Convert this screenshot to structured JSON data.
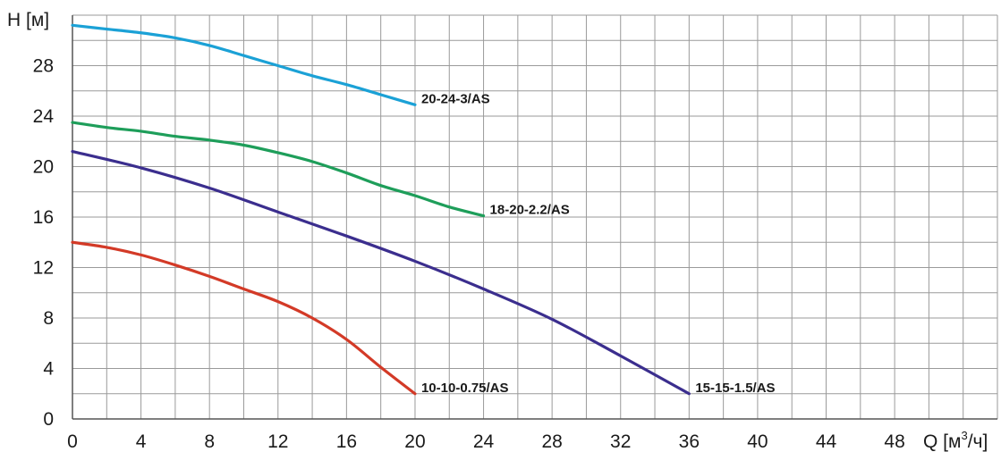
{
  "chart_data": {
    "type": "line",
    "title": "",
    "xlabel": "Q [м",
    "xlabel_sup": "3",
    "xlabel_tail": "/ч]",
    "ylabel": "H [м]",
    "xlim": [
      0,
      54
    ],
    "ylim": [
      0,
      32
    ],
    "grid": true,
    "x_minor_step": 2,
    "y_minor_step": 2,
    "x_ticks": [
      0,
      4,
      8,
      12,
      16,
      20,
      24,
      28,
      32,
      36,
      40,
      44,
      48
    ],
    "y_ticks": [
      0,
      4,
      8,
      12,
      16,
      20,
      24,
      28
    ],
    "series": [
      {
        "name": "20-24-3/AS",
        "color": "#1BA1D6",
        "points": [
          [
            0,
            31.2
          ],
          [
            2,
            30.9
          ],
          [
            4,
            30.6
          ],
          [
            6,
            30.2
          ],
          [
            8,
            29.6
          ],
          [
            10,
            28.8
          ],
          [
            12,
            28.0
          ],
          [
            14,
            27.2
          ],
          [
            16,
            26.5
          ],
          [
            18,
            25.7
          ],
          [
            20,
            24.9
          ]
        ]
      },
      {
        "name": "18-20-2.2/AS",
        "color": "#1E9E5A",
        "points": [
          [
            0,
            23.5
          ],
          [
            2,
            23.1
          ],
          [
            4,
            22.8
          ],
          [
            6,
            22.4
          ],
          [
            8,
            22.1
          ],
          [
            10,
            21.7
          ],
          [
            12,
            21.1
          ],
          [
            14,
            20.4
          ],
          [
            16,
            19.5
          ],
          [
            18,
            18.5
          ],
          [
            20,
            17.7
          ],
          [
            22,
            16.8
          ],
          [
            24,
            16.1
          ]
        ]
      },
      {
        "name": "15-15-1.5/AS",
        "color": "#3B2E8E",
        "points": [
          [
            0,
            21.2
          ],
          [
            4,
            19.9
          ],
          [
            8,
            18.3
          ],
          [
            12,
            16.4
          ],
          [
            16,
            14.5
          ],
          [
            20,
            12.5
          ],
          [
            24,
            10.3
          ],
          [
            28,
            7.9
          ],
          [
            32,
            5.0
          ],
          [
            36,
            2.0
          ]
        ]
      },
      {
        "name": "10-10-0.75/AS",
        "color": "#D33A27",
        "points": [
          [
            0,
            14.0
          ],
          [
            2,
            13.6
          ],
          [
            4,
            13.0
          ],
          [
            6,
            12.2
          ],
          [
            8,
            11.3
          ],
          [
            10,
            10.3
          ],
          [
            12,
            9.3
          ],
          [
            14,
            8.0
          ],
          [
            16,
            6.3
          ],
          [
            18,
            4.1
          ],
          [
            20,
            2.0
          ]
        ]
      }
    ]
  }
}
